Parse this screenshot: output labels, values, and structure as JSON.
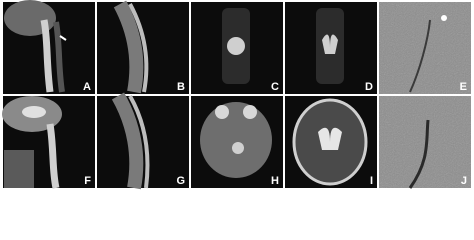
{
  "figure": {
    "panels": [
      "A",
      "B",
      "C",
      "D",
      "E",
      "F",
      "G",
      "H",
      "I",
      "J"
    ]
  }
}
